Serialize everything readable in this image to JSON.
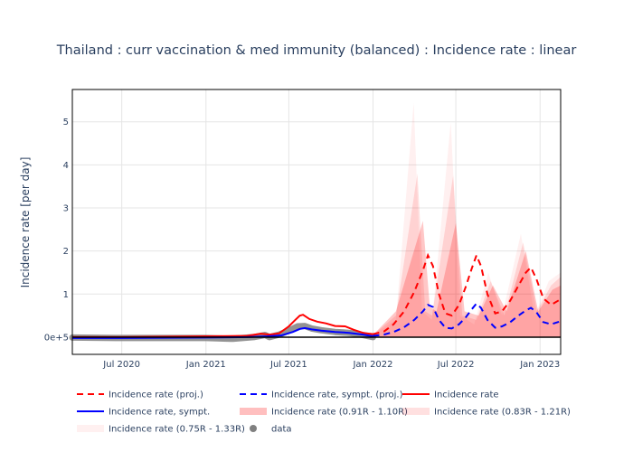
{
  "chart_data": {
    "type": "line",
    "title": "Thailand : curr vaccination & med immunity (balanced) : Incidence rate : linear",
    "xlabel": "",
    "ylabel": "Incidence rate [per day]",
    "x_range": [
      "2020-03-15",
      "2023-02-15"
    ],
    "ylim": [
      -0.4,
      5.75
    ],
    "y_ticks": [
      0,
      1,
      2,
      3,
      4,
      5
    ],
    "y_tick_labels": [
      "0e+5",
      "1",
      "2",
      "3",
      "4",
      "5"
    ],
    "x_ticks": [
      "2020-07-01",
      "2021-01-01",
      "2021-07-01",
      "2022-01-01",
      "2022-07-01",
      "2023-01-01"
    ],
    "x_tick_labels": [
      "Jul 2020",
      "Jan 2021",
      "Jul 2021",
      "Jan 2022",
      "Jul 2022",
      "Jan 2023"
    ],
    "grid": true,
    "legend_placement": "bottom",
    "series": [
      {
        "name": "Incidence rate (proj.)",
        "color": "#ff0000",
        "dash": true,
        "kind": "line",
        "points": [
          [
            "2022-01-01",
            0.07
          ],
          [
            "2022-01-25",
            0.13
          ],
          [
            "2022-02-15",
            0.3
          ],
          [
            "2022-03-10",
            0.6
          ],
          [
            "2022-04-01",
            1.05
          ],
          [
            "2022-04-20",
            1.55
          ],
          [
            "2022-05-01",
            1.9
          ],
          [
            "2022-05-12",
            1.65
          ],
          [
            "2022-05-25",
            1.0
          ],
          [
            "2022-06-08",
            0.55
          ],
          [
            "2022-06-22",
            0.5
          ],
          [
            "2022-07-08",
            0.75
          ],
          [
            "2022-07-22",
            1.15
          ],
          [
            "2022-08-05",
            1.6
          ],
          [
            "2022-08-15",
            1.9
          ],
          [
            "2022-08-25",
            1.65
          ],
          [
            "2022-09-08",
            1.0
          ],
          [
            "2022-09-25",
            0.55
          ],
          [
            "2022-10-10",
            0.6
          ],
          [
            "2022-10-28",
            0.85
          ],
          [
            "2022-11-15",
            1.2
          ],
          [
            "2022-12-01",
            1.5
          ],
          [
            "2022-12-12",
            1.62
          ],
          [
            "2022-12-24",
            1.35
          ],
          [
            "2023-01-08",
            0.9
          ],
          [
            "2023-01-25",
            0.75
          ],
          [
            "2023-02-15",
            0.88
          ]
        ]
      },
      {
        "name": "Incidence rate, sympt. (proj.)",
        "color": "#0000ff",
        "dash": true,
        "kind": "line",
        "points": [
          [
            "2022-01-01",
            0.03
          ],
          [
            "2022-01-25",
            0.06
          ],
          [
            "2022-02-15",
            0.12
          ],
          [
            "2022-03-10",
            0.23
          ],
          [
            "2022-04-01",
            0.4
          ],
          [
            "2022-04-20",
            0.6
          ],
          [
            "2022-05-01",
            0.75
          ],
          [
            "2022-05-12",
            0.7
          ],
          [
            "2022-05-25",
            0.4
          ],
          [
            "2022-06-08",
            0.22
          ],
          [
            "2022-06-22",
            0.2
          ],
          [
            "2022-07-08",
            0.3
          ],
          [
            "2022-07-22",
            0.45
          ],
          [
            "2022-08-05",
            0.65
          ],
          [
            "2022-08-15",
            0.78
          ],
          [
            "2022-08-25",
            0.68
          ],
          [
            "2022-09-08",
            0.4
          ],
          [
            "2022-09-25",
            0.22
          ],
          [
            "2022-10-10",
            0.25
          ],
          [
            "2022-10-28",
            0.35
          ],
          [
            "2022-11-15",
            0.5
          ],
          [
            "2022-12-01",
            0.62
          ],
          [
            "2022-12-12",
            0.68
          ],
          [
            "2022-12-24",
            0.58
          ],
          [
            "2023-01-08",
            0.35
          ],
          [
            "2023-01-25",
            0.3
          ],
          [
            "2023-02-15",
            0.37
          ]
        ]
      },
      {
        "name": "Incidence rate",
        "color": "#ff0000",
        "dash": false,
        "kind": "line",
        "points": [
          [
            "2020-03-15",
            0.0
          ],
          [
            "2020-07-01",
            0.0
          ],
          [
            "2021-01-01",
            0.02
          ],
          [
            "2021-04-01",
            0.03
          ],
          [
            "2021-05-01",
            0.08
          ],
          [
            "2021-05-20",
            0.06
          ],
          [
            "2021-06-10",
            0.09
          ],
          [
            "2021-07-01",
            0.25
          ],
          [
            "2021-07-15",
            0.4
          ],
          [
            "2021-07-25",
            0.5
          ],
          [
            "2021-08-01",
            0.52
          ],
          [
            "2021-08-15",
            0.42
          ],
          [
            "2021-09-01",
            0.36
          ],
          [
            "2021-09-20",
            0.32
          ],
          [
            "2021-10-10",
            0.26
          ],
          [
            "2021-11-01",
            0.25
          ],
          [
            "2021-11-20",
            0.17
          ],
          [
            "2021-12-10",
            0.1
          ],
          [
            "2022-01-01",
            0.07
          ]
        ]
      },
      {
        "name": "Incidence rate, sympt.",
        "color": "#0000ff",
        "dash": false,
        "kind": "line",
        "points": [
          [
            "2020-03-15",
            -0.02
          ],
          [
            "2020-07-01",
            -0.02
          ],
          [
            "2021-01-01",
            -0.01
          ],
          [
            "2021-04-01",
            0.0
          ],
          [
            "2021-05-15",
            0.02
          ],
          [
            "2021-06-15",
            0.04
          ],
          [
            "2021-07-10",
            0.12
          ],
          [
            "2021-07-25",
            0.19
          ],
          [
            "2021-08-05",
            0.21
          ],
          [
            "2021-08-20",
            0.18
          ],
          [
            "2021-09-10",
            0.15
          ],
          [
            "2021-10-10",
            0.12
          ],
          [
            "2021-11-10",
            0.1
          ],
          [
            "2021-12-10",
            0.06
          ],
          [
            "2022-01-01",
            0.02
          ]
        ]
      },
      {
        "name": "Incidence rate (0.91R - 1.10R)",
        "color": "#ff0000",
        "opacity": 0.25,
        "kind": "band"
      },
      {
        "name": "Incidence rate (0.83R - 1.21R)",
        "color": "#ff0000",
        "opacity": 0.12,
        "kind": "band"
      },
      {
        "name": "Incidence rate (0.75R - 1.33R)",
        "color": "#ff0000",
        "opacity": 0.06,
        "kind": "band"
      },
      {
        "name": "data",
        "color": "#808080",
        "kind": "data",
        "points": [
          [
            "2020-03-15",
            -0.01
          ],
          [
            "2020-07-01",
            -0.02
          ],
          [
            "2021-01-01",
            -0.02
          ],
          [
            "2021-03-01",
            -0.04
          ],
          [
            "2021-04-15",
            0.0
          ],
          [
            "2021-05-10",
            0.05
          ],
          [
            "2021-05-20",
            0.0
          ],
          [
            "2021-06-10",
            0.06
          ],
          [
            "2021-07-01",
            0.15
          ],
          [
            "2021-07-20",
            0.25
          ],
          [
            "2021-08-05",
            0.26
          ],
          [
            "2021-08-20",
            0.2
          ],
          [
            "2021-09-10",
            0.16
          ],
          [
            "2021-10-10",
            0.12
          ],
          [
            "2021-11-10",
            0.1
          ],
          [
            "2021-12-10",
            0.05
          ],
          [
            "2022-01-01",
            0.0
          ]
        ]
      }
    ],
    "bands": [
      {
        "opacity": 0.06,
        "peaks": [
          [
            "2022-01-01",
            0.05
          ],
          [
            "2022-02-20",
            0.4
          ],
          [
            "2022-03-31",
            5.45
          ],
          [
            "2022-04-18",
            0.6
          ],
          [
            "2022-05-10",
            0.4
          ],
          [
            "2022-06-20",
            5.0
          ],
          [
            "2022-07-10",
            0.5
          ],
          [
            "2022-08-10",
            0.3
          ],
          [
            "2022-09-10",
            1.5
          ],
          [
            "2022-10-10",
            0.5
          ],
          [
            "2022-11-20",
            2.4
          ],
          [
            "2022-12-20",
            0.5
          ],
          [
            "2023-01-20",
            1.3
          ],
          [
            "2023-02-15",
            1.5
          ]
        ]
      },
      {
        "opacity": 0.12,
        "peaks": [
          [
            "2022-01-01",
            0.05
          ],
          [
            "2022-02-20",
            0.5
          ],
          [
            "2022-04-08",
            3.8
          ],
          [
            "2022-04-25",
            0.6
          ],
          [
            "2022-05-10",
            0.5
          ],
          [
            "2022-06-25",
            3.75
          ],
          [
            "2022-07-15",
            0.5
          ],
          [
            "2022-08-15",
            0.4
          ],
          [
            "2022-09-15",
            1.3
          ],
          [
            "2022-10-15",
            0.5
          ],
          [
            "2022-11-25",
            2.2
          ],
          [
            "2022-12-25",
            0.6
          ],
          [
            "2023-01-25",
            1.2
          ],
          [
            "2023-02-15",
            1.4
          ]
        ]
      },
      {
        "opacity": 0.22,
        "peaks": [
          [
            "2022-01-01",
            0.05
          ],
          [
            "2022-02-20",
            0.6
          ],
          [
            "2022-04-20",
            2.7
          ],
          [
            "2022-05-05",
            0.7
          ],
          [
            "2022-05-20",
            0.6
          ],
          [
            "2022-07-01",
            2.65
          ],
          [
            "2022-07-20",
            0.6
          ],
          [
            "2022-08-20",
            0.5
          ],
          [
            "2022-09-20",
            1.2
          ],
          [
            "2022-10-20",
            0.6
          ],
          [
            "2022-12-01",
            2.0
          ],
          [
            "2022-12-28",
            0.6
          ],
          [
            "2023-01-28",
            1.1
          ],
          [
            "2023-02-15",
            1.2
          ]
        ]
      }
    ]
  },
  "legend": [
    {
      "label": "Incidence rate (proj.)",
      "swatch": "dash",
      "color": "#ff0000"
    },
    {
      "label": "Incidence rate, sympt. (proj.)",
      "swatch": "dash",
      "color": "#0000ff"
    },
    {
      "label": "Incidence rate",
      "swatch": "line",
      "color": "#ff0000"
    },
    {
      "label": "Incidence rate, sympt.",
      "swatch": "line",
      "color": "#0000ff"
    },
    {
      "label": "Incidence rate (0.91R - 1.10R)",
      "swatch": "band",
      "color": "#ff0000",
      "opacity": 0.25
    },
    {
      "label": "Incidence rate (0.83R - 1.21R)",
      "swatch": "band",
      "color": "#ff0000",
      "opacity": 0.12
    },
    {
      "label": "Incidence rate (0.75R - 1.33R)",
      "swatch": "band",
      "color": "#ff0000",
      "opacity": 0.06
    },
    {
      "label": "data",
      "swatch": "dot",
      "color": "#808080"
    }
  ]
}
